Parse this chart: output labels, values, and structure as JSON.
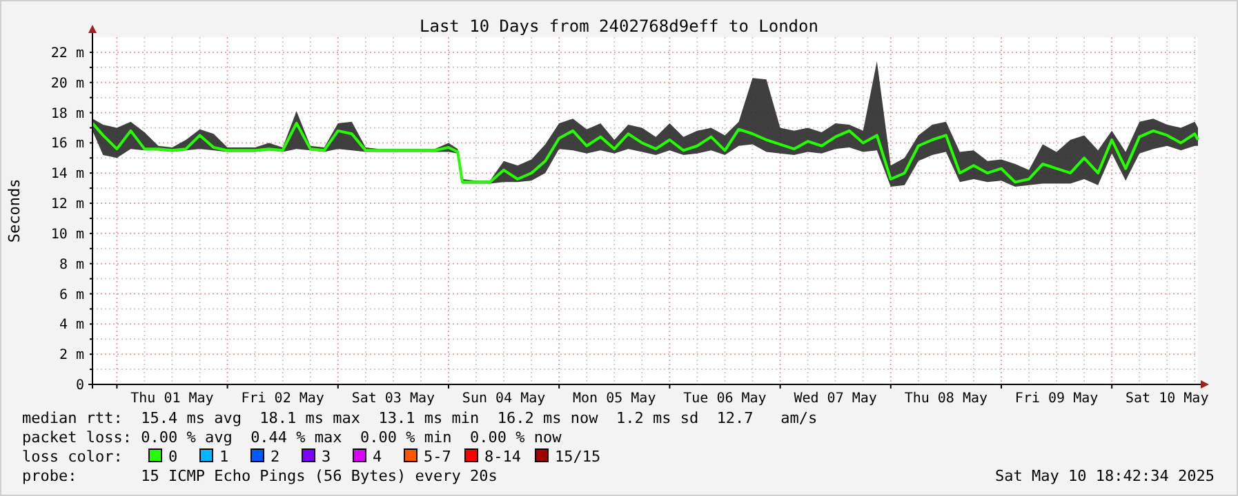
{
  "chart_data": {
    "type": "line",
    "title": "Last 10 Days from 2402768d9eff to London",
    "ylabel": "Seconds",
    "legend_title": "loss color:",
    "legend": "bottom",
    "grid": true,
    "xlim": [
      "2025-04-30T18:42",
      "2025-05-10T18:42"
    ],
    "xticks": [
      {
        "value": "2025-05-01T00:00",
        "label": null
      },
      {
        "value": "2025-05-01T06:00",
        "label": null
      },
      {
        "value": "2025-05-01T12:00",
        "label": "Thu 01 May"
      },
      {
        "value": "2025-05-01T18:00",
        "label": null
      },
      {
        "value": "2025-05-02T00:00",
        "label": null
      },
      {
        "value": "2025-05-02T06:00",
        "label": null
      },
      {
        "value": "2025-05-02T12:00",
        "label": "Fri 02 May"
      },
      {
        "value": "2025-05-02T18:00",
        "label": null
      },
      {
        "value": "2025-05-03T00:00",
        "label": null
      },
      {
        "value": "2025-05-03T06:00",
        "label": null
      },
      {
        "value": "2025-05-03T12:00",
        "label": "Sat 03 May"
      },
      {
        "value": "2025-05-03T18:00",
        "label": null
      },
      {
        "value": "2025-05-04T00:00",
        "label": null
      },
      {
        "value": "2025-05-04T06:00",
        "label": null
      },
      {
        "value": "2025-05-04T12:00",
        "label": "Sun 04 May"
      },
      {
        "value": "2025-05-04T18:00",
        "label": null
      },
      {
        "value": "2025-05-05T00:00",
        "label": null
      },
      {
        "value": "2025-05-05T06:00",
        "label": null
      },
      {
        "value": "2025-05-05T12:00",
        "label": "Mon 05 May"
      },
      {
        "value": "2025-05-05T18:00",
        "label": null
      },
      {
        "value": "2025-05-06T00:00",
        "label": null
      },
      {
        "value": "2025-05-06T06:00",
        "label": null
      },
      {
        "value": "2025-05-06T12:00",
        "label": "Tue 06 May"
      },
      {
        "value": "2025-05-06T18:00",
        "label": null
      },
      {
        "value": "2025-05-07T00:00",
        "label": null
      },
      {
        "value": "2025-05-07T06:00",
        "label": null
      },
      {
        "value": "2025-05-07T12:00",
        "label": "Wed 07 May"
      },
      {
        "value": "2025-05-07T18:00",
        "label": null
      },
      {
        "value": "2025-05-08T00:00",
        "label": null
      },
      {
        "value": "2025-05-08T06:00",
        "label": null
      },
      {
        "value": "2025-05-08T12:00",
        "label": "Thu 08 May"
      },
      {
        "value": "2025-05-08T18:00",
        "label": null
      },
      {
        "value": "2025-05-09T00:00",
        "label": null
      },
      {
        "value": "2025-05-09T06:00",
        "label": null
      },
      {
        "value": "2025-05-09T12:00",
        "label": "Fri 09 May"
      },
      {
        "value": "2025-05-09T18:00",
        "label": null
      },
      {
        "value": "2025-05-10T00:00",
        "label": null
      },
      {
        "value": "2025-05-10T06:00",
        "label": null
      },
      {
        "value": "2025-05-10T12:00",
        "label": "Sat 10 May"
      },
      {
        "value": "2025-05-10T18:00",
        "label": null
      }
    ],
    "ylim": [
      0,
      23
    ],
    "yticks": [
      {
        "value": 0,
        "label": "0"
      },
      {
        "value": 1,
        "label": null
      },
      {
        "value": 2,
        "label": "2 m"
      },
      {
        "value": 3,
        "label": null
      },
      {
        "value": 4,
        "label": "4 m"
      },
      {
        "value": 5,
        "label": null
      },
      {
        "value": 6,
        "label": "6 m"
      },
      {
        "value": 7,
        "label": null
      },
      {
        "value": 8,
        "label": "8 m"
      },
      {
        "value": 9,
        "label": null
      },
      {
        "value": 10,
        "label": "10 m"
      },
      {
        "value": 11,
        "label": null
      },
      {
        "value": 12,
        "label": "12 m"
      },
      {
        "value": 13,
        "label": null
      },
      {
        "value": 14,
        "label": "14 m"
      },
      {
        "value": 15,
        "label": null
      },
      {
        "value": 16,
        "label": "16 m"
      },
      {
        "value": 17,
        "label": null
      },
      {
        "value": 18,
        "label": "18 m"
      },
      {
        "value": 19,
        "label": null
      },
      {
        "value": 20,
        "label": "20 m"
      },
      {
        "value": 21,
        "label": null
      },
      {
        "value": 22,
        "label": "22 m"
      }
    ],
    "series": [
      {
        "name": "0",
        "color": "#26ff00",
        "x": [
          "2025-04-30T18:42",
          "2025-04-30T21:00",
          "2025-05-01T00:00",
          "2025-05-01T03:00",
          "2025-05-01T06:00",
          "2025-05-01T09:00",
          "2025-05-01T12:00",
          "2025-05-01T15:00",
          "2025-05-01T18:00",
          "2025-05-01T21:00",
          "2025-05-02T00:00",
          "2025-05-02T03:00",
          "2025-05-02T06:00",
          "2025-05-02T09:00",
          "2025-05-02T12:00",
          "2025-05-02T15:00",
          "2025-05-02T18:00",
          "2025-05-02T21:00",
          "2025-05-03T00:00",
          "2025-05-03T03:00",
          "2025-05-03T06:00",
          "2025-05-03T09:00",
          "2025-05-03T12:00",
          "2025-05-03T15:00",
          "2025-05-03T18:00",
          "2025-05-03T21:00",
          "2025-05-04T00:00",
          "2025-05-04T02:00",
          "2025-05-04T03:00",
          "2025-05-04T06:00",
          "2025-05-04T09:00",
          "2025-05-04T12:00",
          "2025-05-04T15:00",
          "2025-05-04T18:00",
          "2025-05-04T21:00",
          "2025-05-05T00:00",
          "2025-05-05T03:00",
          "2025-05-05T06:00",
          "2025-05-05T09:00",
          "2025-05-05T12:00",
          "2025-05-05T15:00",
          "2025-05-05T18:00",
          "2025-05-05T21:00",
          "2025-05-06T00:00",
          "2025-05-06T03:00",
          "2025-05-06T06:00",
          "2025-05-06T09:00",
          "2025-05-06T12:00",
          "2025-05-06T15:00",
          "2025-05-06T18:00",
          "2025-05-06T21:00",
          "2025-05-07T00:00",
          "2025-05-07T03:00",
          "2025-05-07T06:00",
          "2025-05-07T09:00",
          "2025-05-07T12:00",
          "2025-05-07T15:00",
          "2025-05-07T18:00",
          "2025-05-07T21:00",
          "2025-05-08T00:00",
          "2025-05-08T03:00",
          "2025-05-08T06:00",
          "2025-05-08T09:00",
          "2025-05-08T12:00",
          "2025-05-08T15:00",
          "2025-05-08T18:00",
          "2025-05-08T21:00",
          "2025-05-09T00:00",
          "2025-05-09T03:00",
          "2025-05-09T06:00",
          "2025-05-09T09:00",
          "2025-05-09T12:00",
          "2025-05-09T15:00",
          "2025-05-09T18:00",
          "2025-05-09T21:00",
          "2025-05-10T00:00",
          "2025-05-10T03:00",
          "2025-05-10T06:00",
          "2025-05-10T09:00",
          "2025-05-10T12:00",
          "2025-05-10T15:00",
          "2025-05-10T18:00",
          "2025-05-10T18:42"
        ],
        "values": [
          17.3,
          16.5,
          15.6,
          16.8,
          15.6,
          15.6,
          15.5,
          15.6,
          16.5,
          15.7,
          15.5,
          15.5,
          15.5,
          15.6,
          15.5,
          17.3,
          15.6,
          15.5,
          16.8,
          16.6,
          15.5,
          15.5,
          15.5,
          15.5,
          15.5,
          15.5,
          15.7,
          15.4,
          13.4,
          13.4,
          13.4,
          14.2,
          13.6,
          14.0,
          14.8,
          16.3,
          16.8,
          15.8,
          16.4,
          15.6,
          16.6,
          16.0,
          15.6,
          16.2,
          15.5,
          15.8,
          16.4,
          15.5,
          16.9,
          16.6,
          16.2,
          15.9,
          15.6,
          16.1,
          15.8,
          16.4,
          16.8,
          16.0,
          16.5,
          13.6,
          14.0,
          15.8,
          16.2,
          16.5,
          14.0,
          14.5,
          14.0,
          14.3,
          13.4,
          13.6,
          14.6,
          14.3,
          14.0,
          15.0,
          14.0,
          16.2,
          14.3,
          16.4,
          16.8,
          16.5,
          16.0,
          16.6,
          16.2
        ],
        "lower": [
          16.8,
          15.2,
          15.0,
          15.6,
          15.5,
          15.5,
          15.4,
          15.5,
          15.6,
          15.5,
          15.4,
          15.4,
          15.4,
          15.5,
          15.4,
          15.6,
          15.5,
          15.4,
          15.6,
          15.5,
          15.4,
          15.4,
          15.4,
          15.4,
          15.4,
          15.4,
          15.4,
          15.3,
          13.3,
          13.3,
          13.3,
          13.4,
          13.4,
          13.5,
          14.0,
          15.6,
          15.5,
          15.3,
          15.5,
          15.3,
          15.6,
          15.4,
          15.2,
          15.5,
          15.2,
          15.3,
          15.5,
          15.2,
          15.8,
          15.9,
          15.4,
          15.3,
          15.2,
          15.4,
          15.3,
          15.6,
          15.7,
          15.4,
          15.5,
          13.1,
          13.2,
          14.8,
          15.2,
          15.4,
          13.4,
          13.6,
          13.4,
          13.5,
          13.1,
          13.2,
          13.3,
          13.3,
          13.3,
          13.6,
          13.2,
          15.3,
          13.5,
          15.3,
          15.6,
          15.8,
          15.5,
          15.8,
          15.8
        ],
        "upper": [
          17.6,
          17.2,
          17.0,
          17.4,
          16.7,
          15.8,
          15.7,
          16.2,
          16.9,
          16.6,
          15.7,
          15.7,
          15.7,
          16.0,
          15.7,
          18.1,
          15.8,
          15.7,
          17.3,
          17.4,
          15.7,
          15.6,
          15.6,
          15.6,
          15.6,
          15.6,
          16.0,
          15.6,
          13.6,
          13.5,
          13.5,
          14.8,
          14.5,
          14.9,
          15.9,
          17.3,
          17.6,
          16.9,
          17.3,
          16.2,
          17.2,
          17.0,
          16.4,
          17.3,
          16.4,
          16.8,
          17.0,
          16.5,
          17.4,
          20.3,
          20.2,
          17.0,
          16.8,
          17.0,
          16.7,
          17.3,
          17.2,
          16.8,
          21.4,
          14.5,
          15.0,
          16.5,
          17.2,
          17.4,
          15.4,
          15.5,
          14.8,
          14.9,
          14.6,
          14.2,
          15.9,
          15.4,
          16.2,
          16.5,
          15.5,
          16.8,
          15.4,
          17.4,
          17.6,
          17.2,
          17.0,
          17.4,
          17.0
        ]
      },
      {
        "name": "1",
        "color": "#00b8ff"
      },
      {
        "name": "2",
        "color": "#0059ff"
      },
      {
        "name": "3",
        "color": "#7e00ff"
      },
      {
        "name": "4",
        "color": "#dd00ff"
      },
      {
        "name": "5-7",
        "color": "#ff5500"
      },
      {
        "name": "8-14",
        "color": "#ff0000"
      },
      {
        "name": "15/15",
        "color": "#a10000"
      }
    ],
    "annotations": [
      "median rtt:  15.4 ms avg  18.1 ms max  13.1 ms min  16.2 ms now  1.2 ms sd  12.7   am/s",
      "packet loss: 0.00 % avg  0.44 % max  0.00 % min  0.00 % now",
      "probe:       15 ICMP Echo Pings (56 Bytes) every 20s",
      "Sat May 10 18:42:34 2025"
    ]
  }
}
